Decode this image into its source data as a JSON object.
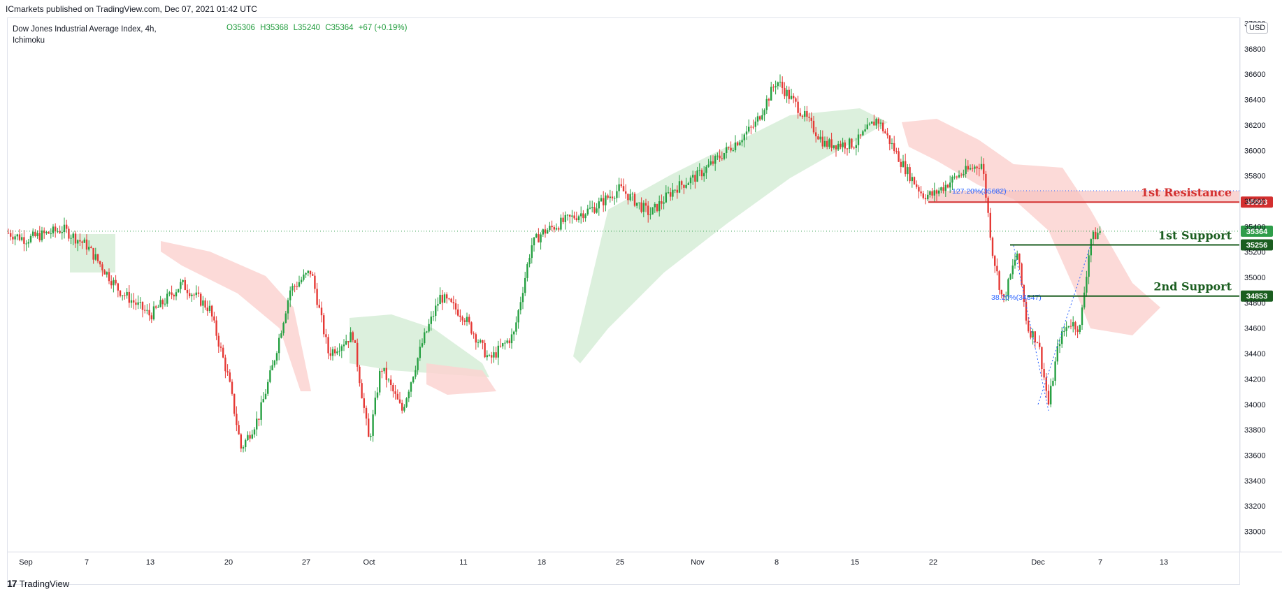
{
  "header": {
    "published_note": "ICmarkets published on TradingView.com, Dec 07, 2021 01:42 UTC"
  },
  "legend": {
    "symbol": "Dow Jones Industrial Average Index, 4h,",
    "indicator": "Ichimoku",
    "open": "O35306",
    "high": "H35368",
    "low": "L35240",
    "close": "C35364",
    "change": "+67 (+0.19%)"
  },
  "currency": "USD",
  "brand": {
    "mark": "17",
    "name": "TradingView"
  },
  "colors": {
    "up": "#26a042",
    "down": "#e53935",
    "cloud_bull": "#d8eed9",
    "cloud_bear": "#fbd3d1",
    "resistance": "#d32f2f",
    "support": "#1b5e20",
    "last_price": "#2e9d4a",
    "fib": "#2962ff"
  },
  "chart_data": {
    "type": "candlestick",
    "timeframe": "4h",
    "y_axis": {
      "ylim": [
        32800,
        37200
      ],
      "ticks": [
        33000,
        33200,
        33400,
        33600,
        33800,
        34000,
        34200,
        34400,
        34600,
        34800,
        35000,
        35200,
        35400,
        35600,
        35800,
        36000,
        36200,
        36400,
        36600,
        36800,
        37000
      ]
    },
    "x_axis": {
      "ticks": [
        "Sep",
        "7",
        "13",
        "20",
        "27",
        "Oct",
        "11",
        "18",
        "25",
        "Nov",
        "8",
        "15",
        "22",
        "Dec",
        "7",
        "13"
      ]
    },
    "price_path": [
      [
        "Sep",
        35300
      ],
      [
        "7",
        35250
      ],
      [
        "13",
        34700
      ],
      [
        "20",
        33650
      ],
      [
        "27",
        35000
      ],
      [
        "Oct",
        33550
      ],
      [
        "11",
        34600
      ],
      [
        "18",
        35300
      ],
      [
        "25",
        35650
      ],
      [
        "Nov",
        36000
      ],
      [
        "8",
        36550
      ],
      [
        "15",
        36150
      ],
      [
        "22",
        35650
      ],
      [
        "Dec",
        34000
      ],
      [
        "7",
        35364
      ]
    ],
    "last_price": 35364,
    "levels": [
      {
        "name": "1st Resistance",
        "value": 35593,
        "label": "35593"
      },
      {
        "name": "1st Support",
        "value": 35256,
        "label": "35256"
      },
      {
        "name": "2nd Support",
        "value": 34853,
        "label": "34853"
      }
    ],
    "last_price_label": "35364",
    "fibonacci": [
      {
        "label": "127.20%(35682)",
        "value": 35682
      },
      {
        "label": "38.20%(34847)",
        "value": 34847
      }
    ]
  }
}
